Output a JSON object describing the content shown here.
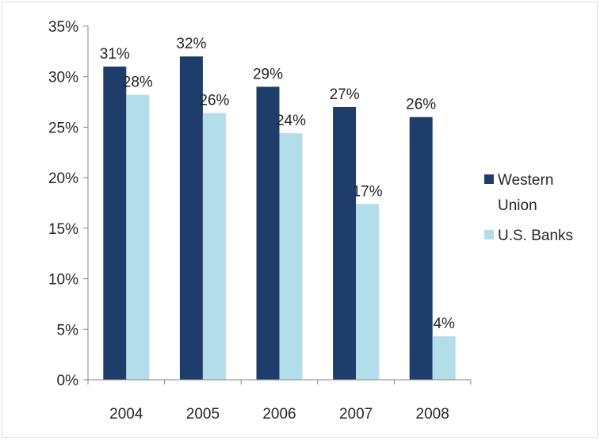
{
  "chart_data": {
    "type": "bar",
    "categories": [
      "2004",
      "2005",
      "2006",
      "2007",
      "2008"
    ],
    "series": [
      {
        "name": "Western Union",
        "values": [
          31,
          32,
          29,
          27,
          26
        ],
        "labels": [
          "31%",
          "32%",
          "29%",
          "27%",
          "26%"
        ],
        "color": "#1f3d6b"
      },
      {
        "name": "U.S. Banks",
        "values": [
          28.2,
          26.4,
          24.4,
          17.4,
          4.3
        ],
        "labels": [
          "28%",
          "26%",
          "24%",
          "17%",
          "4%"
        ],
        "color": "#b3dde9"
      }
    ],
    "yticks": [
      "0%",
      "5%",
      "10%",
      "15%",
      "20%",
      "25%",
      "30%",
      "35%"
    ],
    "ylim": [
      0,
      35
    ],
    "title": "",
    "xlabel": "",
    "ylabel": "",
    "grid": false,
    "legend": {
      "position": "right",
      "entries": [
        {
          "lines": [
            "Western",
            "Union"
          ]
        },
        {
          "lines": [
            "U.S. Banks"
          ]
        }
      ]
    }
  }
}
